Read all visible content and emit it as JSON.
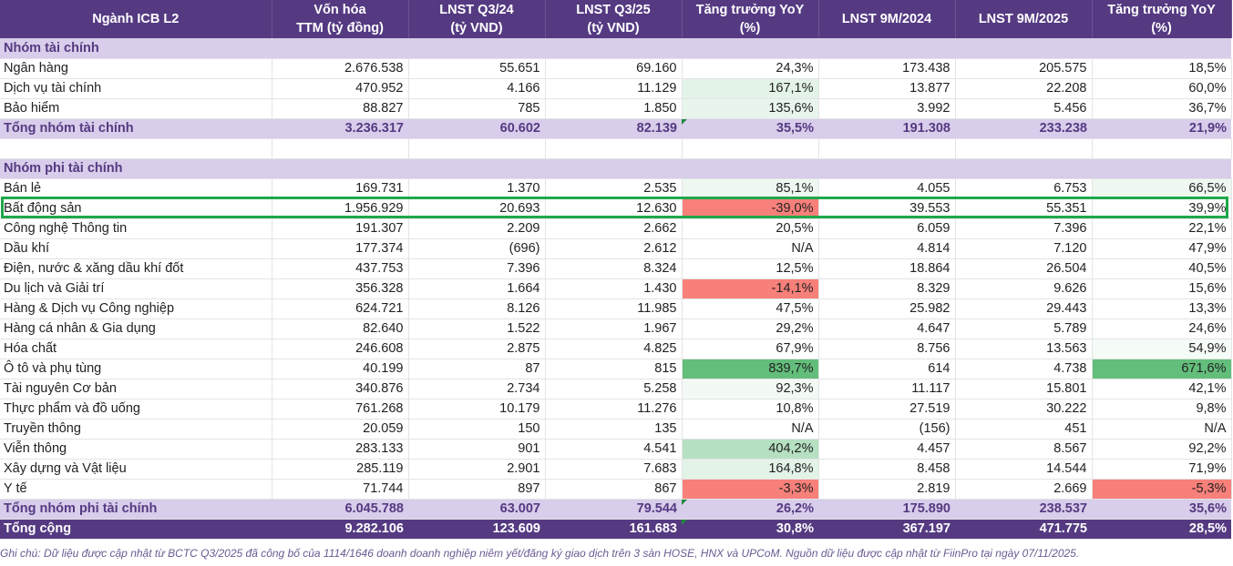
{
  "headers": [
    "Ngành ICB L2",
    "Vốn hóa\nTTM (tỷ đồng)",
    "LNST Q3/24\n(tỷ VND)",
    "LNST Q3/25\n(tỷ VND)",
    "Tăng trưởng YoY\n(%)",
    "LNST 9M/2024",
    "LNST 9M/2025",
    "Tăng trưởng YoY\n(%)"
  ],
  "colors": {
    "header_bg": "#553a82",
    "section_bg": "#d8cdea",
    "highlight_border": "#1ea84a"
  },
  "rows": [
    {
      "type": "section",
      "name": "Nhóm tài chính"
    },
    {
      "type": "data",
      "name": "Ngân hàng",
      "cap": "2.676.538",
      "q324": "55.651",
      "q325": "69.160",
      "yoy_q": "24,3%",
      "m24": "173.438",
      "m25": "205.575",
      "yoy_m": "18,5%",
      "yoy_q_color": "#ffffff",
      "yoy_m_color": "#ffffff"
    },
    {
      "type": "data",
      "name": "Dịch vụ tài chính",
      "cap": "470.952",
      "q324": "4.166",
      "q325": "11.129",
      "yoy_q": "167,1%",
      "m24": "13.877",
      "m25": "22.208",
      "yoy_m": "60,0%",
      "yoy_q_color": "#e3f3e8",
      "yoy_m_color": "#ffffff"
    },
    {
      "type": "data",
      "name": "Bảo hiểm",
      "cap": "88.827",
      "q324": "785",
      "q325": "1.850",
      "yoy_q": "135,6%",
      "m24": "3.992",
      "m25": "5.456",
      "yoy_m": "36,7%",
      "yoy_q_color": "#e8f5ec",
      "yoy_m_color": "#ffffff"
    },
    {
      "type": "total",
      "name": "Tổng nhóm tài chính",
      "cap": "3.236.317",
      "q324": "60.602",
      "q325": "82.139",
      "yoy_q": "35,5%",
      "m24": "191.308",
      "m25": "233.238",
      "yoy_m": "21,9%"
    },
    {
      "type": "blank"
    },
    {
      "type": "section",
      "name": "Nhóm phi tài chính"
    },
    {
      "type": "data",
      "name": "Bán lẻ",
      "cap": "169.731",
      "q324": "1.370",
      "q325": "2.535",
      "yoy_q": "85,1%",
      "m24": "4.055",
      "m25": "6.753",
      "yoy_m": "66,5%",
      "yoy_q_color": "#eef8f1",
      "yoy_m_color": "#eef8f1"
    },
    {
      "type": "data",
      "name": "Bất động sản",
      "cap": "1.956.929",
      "q324": "20.693",
      "q325": "12.630",
      "yoy_q": "-39,0%",
      "m24": "39.553",
      "m25": "55.351",
      "yoy_m": "39,9%",
      "yoy_q_color": "#f8807a",
      "yoy_m_color": "#ffffff"
    },
    {
      "type": "data",
      "name": "Công nghệ Thông tin",
      "cap": "191.307",
      "q324": "2.209",
      "q325": "2.662",
      "yoy_q": "20,5%",
      "m24": "6.059",
      "m25": "7.396",
      "yoy_m": "22,1%",
      "yoy_q_color": "#ffffff",
      "yoy_m_color": "#ffffff"
    },
    {
      "type": "data",
      "name": "Dầu khí",
      "cap": "177.374",
      "q324": "(696)",
      "q325": "2.612",
      "yoy_q": "N/A",
      "m24": "4.814",
      "m25": "7.120",
      "yoy_m": "47,9%",
      "yoy_q_color": "#ffffff",
      "yoy_m_color": "#ffffff"
    },
    {
      "type": "data",
      "name": "Điện, nước & xăng dầu khí đốt",
      "cap": "437.753",
      "q324": "7.396",
      "q325": "8.324",
      "yoy_q": "12,5%",
      "m24": "18.864",
      "m25": "26.504",
      "yoy_m": "40,5%",
      "yoy_q_color": "#ffffff",
      "yoy_m_color": "#ffffff"
    },
    {
      "type": "data",
      "name": "Du lịch và Giải trí",
      "cap": "356.328",
      "q324": "1.664",
      "q325": "1.430",
      "yoy_q": "-14,1%",
      "m24": "8.329",
      "m25": "9.626",
      "yoy_m": "15,6%",
      "yoy_q_color": "#f8807a",
      "yoy_m_color": "#ffffff"
    },
    {
      "type": "data",
      "name": "Hàng & Dịch vụ Công nghiệp",
      "cap": "624.721",
      "q324": "8.126",
      "q325": "11.985",
      "yoy_q": "47,5%",
      "m24": "25.982",
      "m25": "29.443",
      "yoy_m": "13,3%",
      "yoy_q_color": "#ffffff",
      "yoy_m_color": "#ffffff"
    },
    {
      "type": "data",
      "name": "Hàng cá nhân & Gia dụng",
      "cap": "82.640",
      "q324": "1.522",
      "q325": "1.967",
      "yoy_q": "29,2%",
      "m24": "4.647",
      "m25": "5.789",
      "yoy_m": "24,6%",
      "yoy_q_color": "#ffffff",
      "yoy_m_color": "#ffffff"
    },
    {
      "type": "data",
      "name": "Hóa chất",
      "cap": "246.608",
      "q324": "2.875",
      "q325": "4.825",
      "yoy_q": "67,9%",
      "m24": "8.756",
      "m25": "13.563",
      "yoy_m": "54,9%",
      "yoy_q_color": "#ffffff",
      "yoy_m_color": "#f5fbf7"
    },
    {
      "type": "data",
      "name": "Ô tô và phụ tùng",
      "cap": "40.199",
      "q324": "87",
      "q325": "815",
      "yoy_q": "839,7%",
      "m24": "614",
      "m25": "4.738",
      "yoy_m": "671,6%",
      "yoy_q_color": "#63be7b",
      "yoy_m_color": "#63be7b"
    },
    {
      "type": "data",
      "name": "Tài nguyên Cơ bản",
      "cap": "340.876",
      "q324": "2.734",
      "q325": "5.258",
      "yoy_q": "92,3%",
      "m24": "11.117",
      "m25": "15.801",
      "yoy_m": "42,1%",
      "yoy_q_color": "#f3faf5",
      "yoy_m_color": "#ffffff"
    },
    {
      "type": "data",
      "name": "Thực phẩm và đồ uống",
      "cap": "761.268",
      "q324": "10.179",
      "q325": "11.276",
      "yoy_q": "10,8%",
      "m24": "27.519",
      "m25": "30.222",
      "yoy_m": "9,8%",
      "yoy_q_color": "#ffffff",
      "yoy_m_color": "#ffffff"
    },
    {
      "type": "data",
      "name": "Truyền thông",
      "cap": "20.059",
      "q324": "150",
      "q325": "135",
      "yoy_q": "N/A",
      "m24": "(156)",
      "m25": "451",
      "yoy_m": "N/A",
      "yoy_q_color": "#ffffff",
      "yoy_m_color": "#ffffff"
    },
    {
      "type": "data",
      "name": "Viễn thông",
      "cap": "283.133",
      "q324": "901",
      "q325": "4.541",
      "yoy_q": "404,2%",
      "m24": "4.457",
      "m25": "8.567",
      "yoy_m": "92,2%",
      "yoy_q_color": "#b5e0c1",
      "yoy_m_color": "#ffffff"
    },
    {
      "type": "data",
      "name": "Xây dựng và Vật liệu",
      "cap": "285.119",
      "q324": "2.901",
      "q325": "7.683",
      "yoy_q": "164,8%",
      "m24": "8.458",
      "m25": "14.544",
      "yoy_m": "71,9%",
      "yoy_q_color": "#e3f3e8",
      "yoy_m_color": "#ffffff"
    },
    {
      "type": "data",
      "name": "Y tế",
      "cap": "71.744",
      "q324": "897",
      "q325": "867",
      "yoy_q": "-3,3%",
      "m24": "2.819",
      "m25": "2.669",
      "yoy_m": "-5,3%",
      "yoy_q_color": "#f8807a",
      "yoy_m_color": "#f8807a"
    },
    {
      "type": "total",
      "name": "Tổng nhóm phi tài chính",
      "cap": "6.045.788",
      "q324": "63.007",
      "q325": "79.544",
      "yoy_q": "26,2%",
      "m24": "175.890",
      "m25": "238.537",
      "yoy_m": "35,6%"
    },
    {
      "type": "grand",
      "name": "Tổng cộng",
      "cap": "9.282.106",
      "q324": "123.609",
      "q325": "161.683",
      "yoy_q": "30,8%",
      "m24": "367.197",
      "m25": "471.775",
      "yoy_m": "28,5%"
    }
  ],
  "note": "Ghi chú: Dữ liệu được cập nhật từ BCTC Q3/2025 đã công bố của 1114/1646 doanh doanh nghiệp niêm yết/đăng ký giao dịch trên 3 sàn HOSE, HNX và UPCoM. Nguồn dữ liệu được cập nhật từ FiinPro tại ngày 07/11/2025."
}
